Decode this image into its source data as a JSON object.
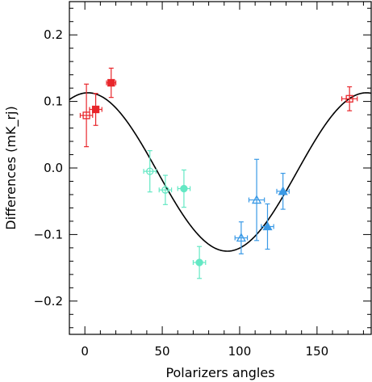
{
  "chart_data": {
    "type": "scatter",
    "xlabel": "Polarizers angles",
    "ylabel": "Differences (mK_rj)",
    "xlim": [
      -10,
      185
    ],
    "ylim": [
      -0.25,
      0.25
    ],
    "xticks": [
      0,
      50,
      100,
      150
    ],
    "xtick_labels": [
      "0",
      "50",
      "100",
      "150"
    ],
    "yticks": [
      -0.2,
      -0.1,
      0.0,
      0.1,
      0.2
    ],
    "ytick_labels": [
      "−0.2",
      "−0.1",
      "0.0",
      "0.1",
      "0.2"
    ],
    "grid": false,
    "series": [
      {
        "color": "#e8262b",
        "points": [
          {
            "x": 17,
            "y": 0.128,
            "xerr": 3,
            "yerr": 0.022,
            "marker": "square",
            "filled": true
          },
          {
            "x": 7,
            "y": 0.088,
            "xerr": 4,
            "yerr": 0.024,
            "marker": "square",
            "filled": true
          },
          {
            "x": 1,
            "y": 0.079,
            "xerr": 4,
            "yerr": 0.047,
            "marker": "square",
            "filled": false
          },
          {
            "x": 171,
            "y": 0.104,
            "xerr": 5,
            "yerr": 0.018,
            "marker": "square",
            "filled": false
          }
        ]
      },
      {
        "color": "#64e8c4",
        "points": [
          {
            "x": 42,
            "y": -0.005,
            "xerr": 4,
            "yerr": 0.031,
            "marker": "circle",
            "filled": false
          },
          {
            "x": 52,
            "y": -0.033,
            "xerr": 4,
            "yerr": 0.022,
            "marker": "circle",
            "filled": false
          },
          {
            "x": 64,
            "y": -0.031,
            "xerr": 4,
            "yerr": 0.028,
            "marker": "circle",
            "filled": true
          },
          {
            "x": 74,
            "y": -0.142,
            "xerr": 4,
            "yerr": 0.024,
            "marker": "circle",
            "filled": true
          }
        ]
      },
      {
        "color": "#3a9ae6",
        "points": [
          {
            "x": 101,
            "y": -0.105,
            "xerr": 4,
            "yerr": 0.024,
            "marker": "triangle",
            "filled": false
          },
          {
            "x": 111,
            "y": -0.048,
            "xerr": 5,
            "yerr": 0.061,
            "marker": "triangle",
            "filled": false
          },
          {
            "x": 118,
            "y": -0.088,
            "xerr": 4,
            "yerr": 0.034,
            "marker": "triangle",
            "filled": true
          },
          {
            "x": 128,
            "y": -0.035,
            "xerr": 4,
            "yerr": 0.027,
            "marker": "triangle",
            "filled": true
          }
        ]
      }
    ],
    "fit_curve": {
      "color": "#000000",
      "function": "offset + amplitude * cos(2 * (x - phase_deg) degrees)",
      "offset": -0.006,
      "amplitude": 0.119,
      "phase_deg": 2
    }
  }
}
